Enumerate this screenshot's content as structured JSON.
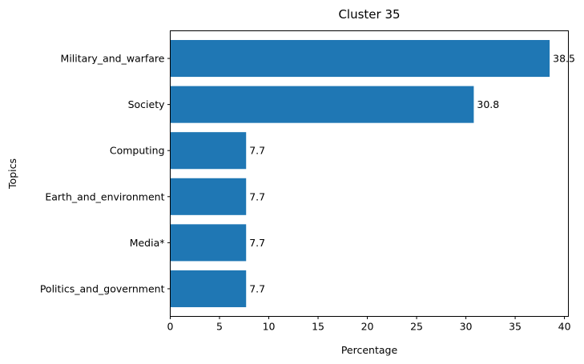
{
  "chart_data": {
    "type": "bar",
    "orientation": "horizontal",
    "title": "Cluster 35",
    "xlabel": "Percentage",
    "ylabel": "Topics",
    "categories": [
      "Military_and_warfare",
      "Society",
      "Computing",
      "Earth_and_environment",
      "Media*",
      "Politics_and_government"
    ],
    "values": [
      38.5,
      30.8,
      7.7,
      7.7,
      7.7,
      7.7
    ],
    "value_labels": [
      "38.5",
      "30.8",
      "7.7",
      "7.7",
      "7.7",
      "7.7"
    ],
    "xlim": [
      0,
      40.4
    ],
    "xticks": [
      0,
      5,
      10,
      15,
      20,
      25,
      30,
      35,
      40
    ],
    "grid": false,
    "bar_color": "#1f77b4"
  }
}
